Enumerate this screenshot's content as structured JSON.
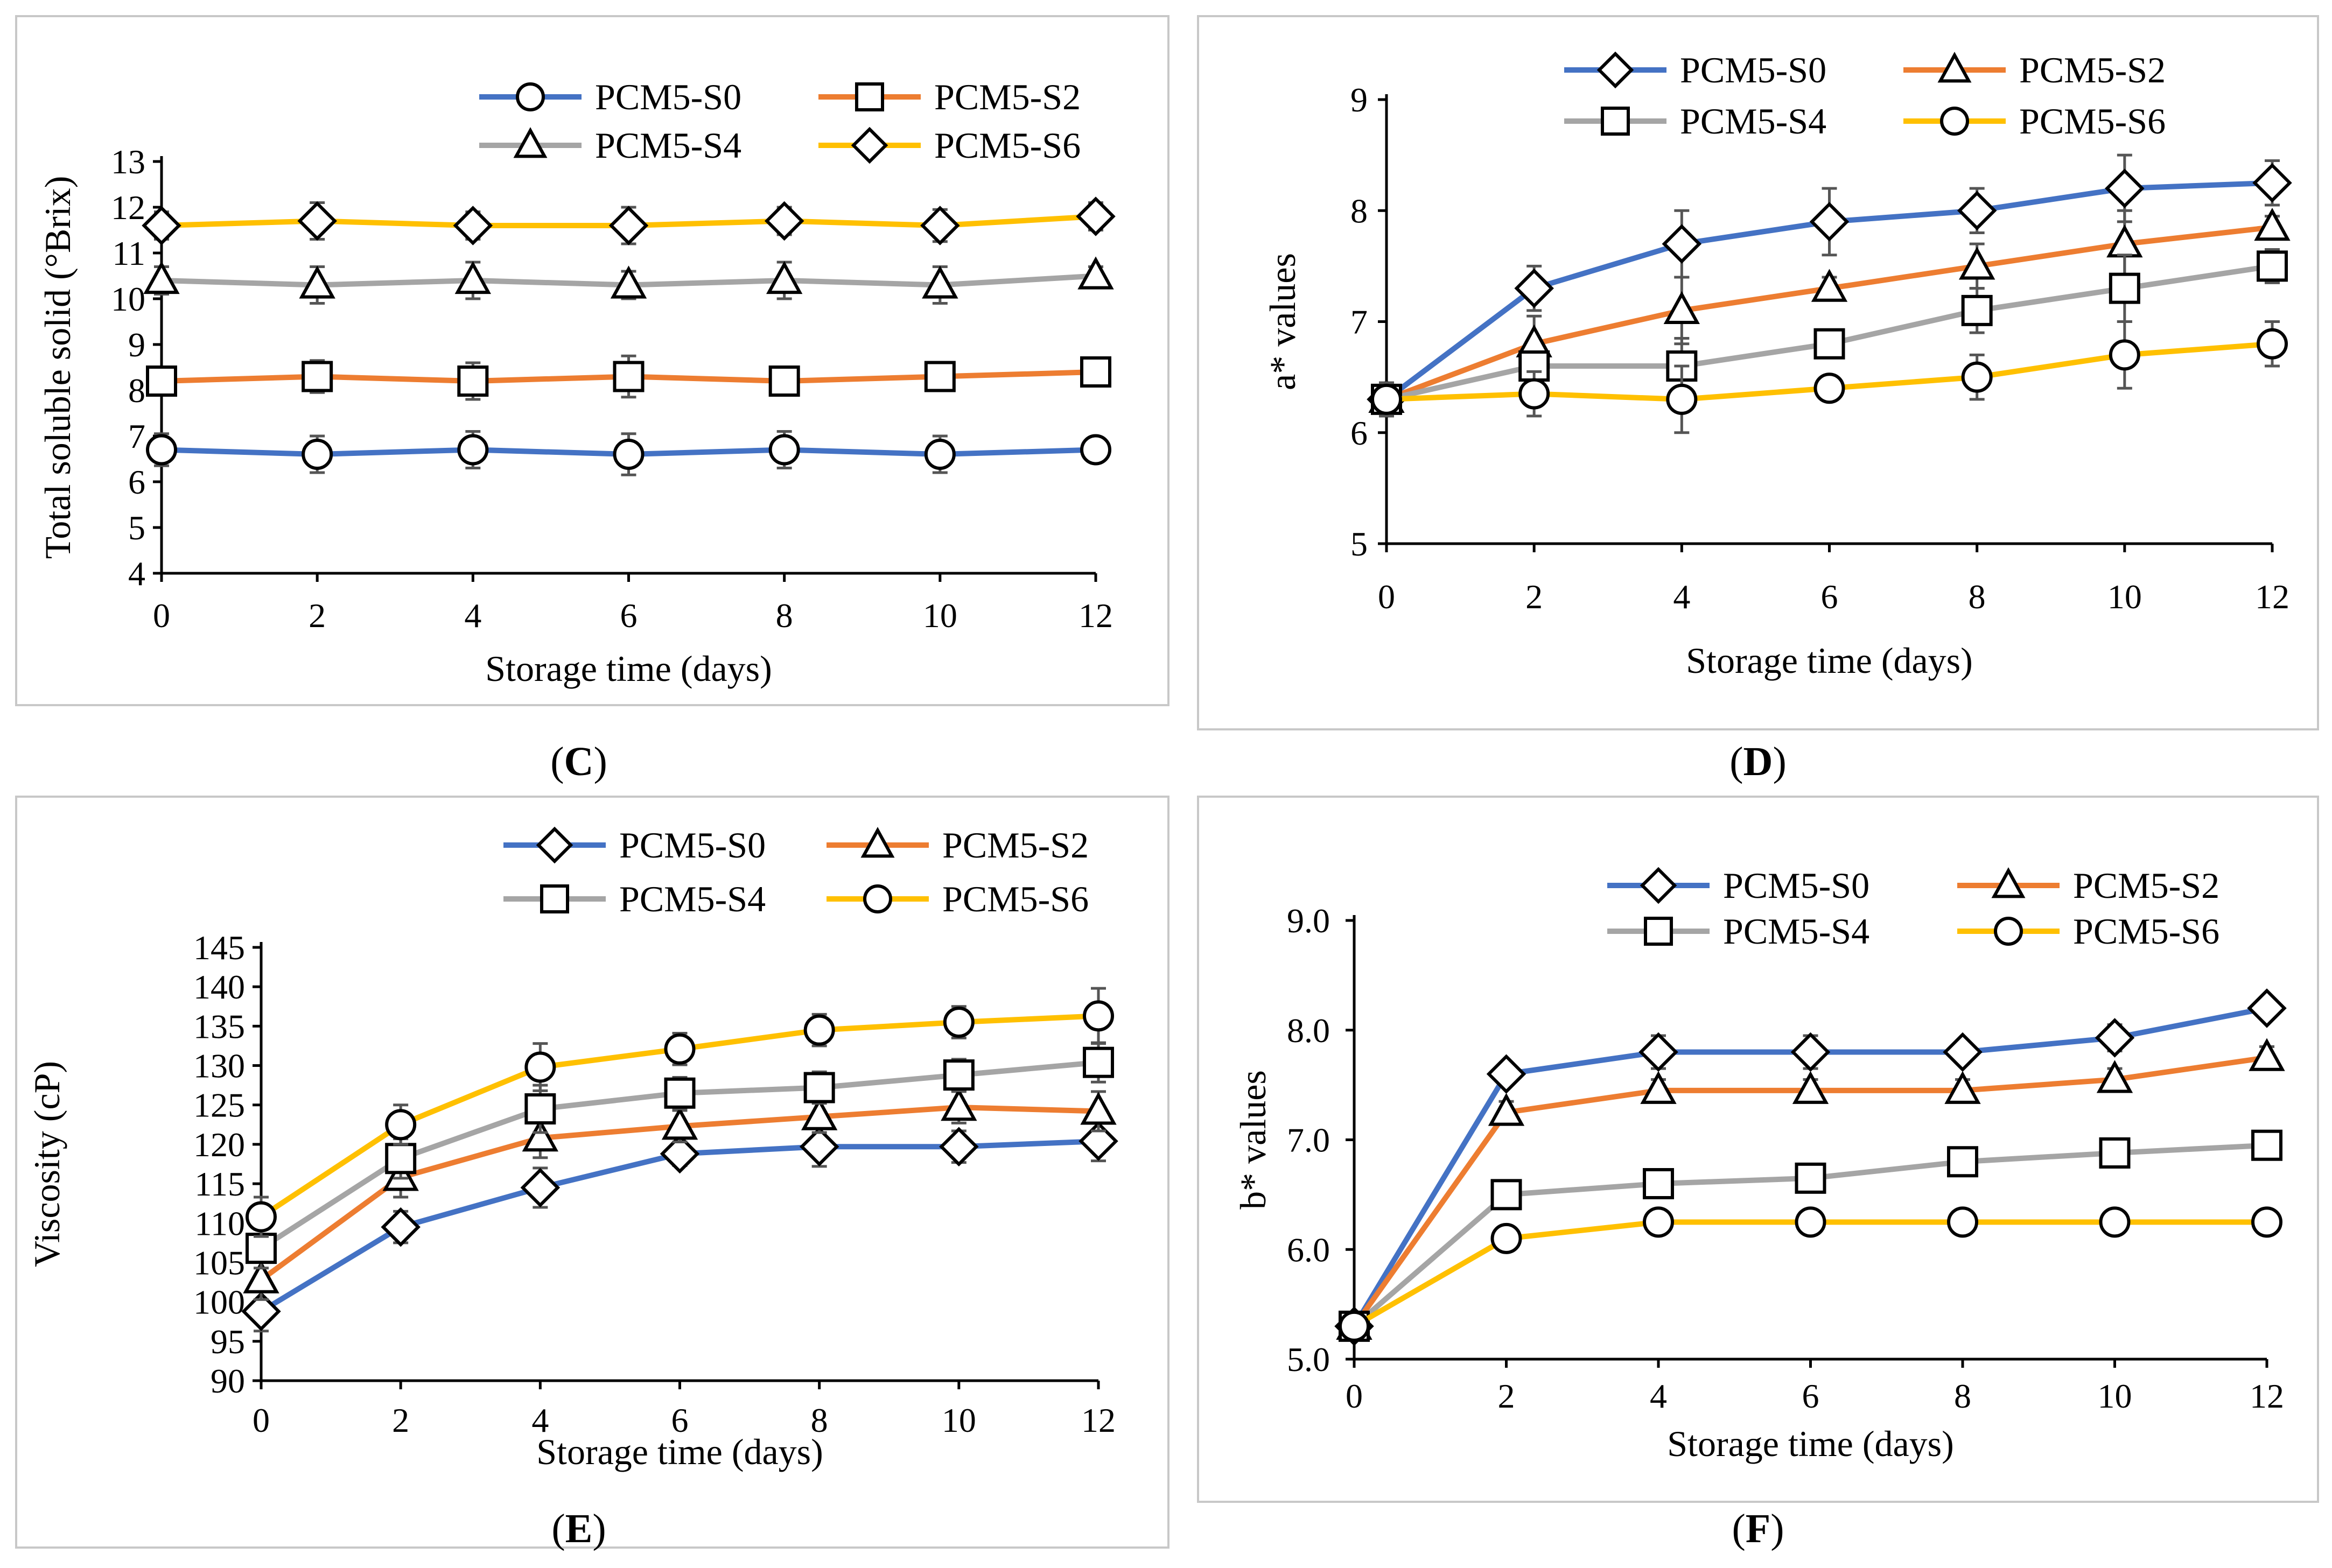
{
  "chart_data": [
    {
      "type": "line",
      "panel": "C",
      "caption": "C",
      "ylabel": "Total soluble solid (°Brix)",
      "xlabel": "Storage time (days)",
      "x": [
        0,
        2,
        4,
        6,
        8,
        10,
        12
      ],
      "ylim": [
        4,
        13
      ],
      "yticks": [
        "4",
        "5",
        "6",
        "7",
        "8",
        "9",
        "10",
        "11",
        "12",
        "13"
      ],
      "xticks": [
        "0",
        "2",
        "4",
        "6",
        "8",
        "10",
        "12"
      ],
      "series": [
        {
          "name": "PCM5-S0",
          "color": "#4472C4",
          "marker": "circle",
          "values": [
            6.7,
            6.6,
            6.7,
            6.6,
            6.7,
            6.6,
            6.7
          ],
          "err": [
            0.35,
            0.4,
            0.4,
            0.45,
            0.4,
            0.4,
            0.1
          ]
        },
        {
          "name": "PCM5-S2",
          "color": "#ED7D31",
          "marker": "square",
          "values": [
            8.2,
            8.3,
            8.2,
            8.3,
            8.2,
            8.3,
            8.4
          ],
          "err": [
            0.3,
            0.35,
            0.4,
            0.45,
            0.25,
            0.3,
            0.15
          ]
        },
        {
          "name": "PCM5-S4",
          "color": "#A5A5A5",
          "marker": "triangle",
          "values": [
            10.4,
            10.3,
            10.4,
            10.3,
            10.4,
            10.3,
            10.5
          ],
          "err": [
            0.3,
            0.4,
            0.4,
            0.3,
            0.4,
            0.4,
            0.2
          ]
        },
        {
          "name": "PCM5-S6",
          "color": "#FFC000",
          "marker": "diamond",
          "values": [
            11.6,
            11.7,
            11.6,
            11.6,
            11.7,
            11.6,
            11.8
          ],
          "err": [
            0.3,
            0.4,
            0.3,
            0.4,
            0.3,
            0.35,
            0.3
          ]
        }
      ]
    },
    {
      "type": "line",
      "panel": "D",
      "caption": "D",
      "ylabel": "a* values",
      "xlabel": "Storage time (days)",
      "x": [
        0,
        2,
        4,
        6,
        8,
        10,
        12
      ],
      "ylim": [
        5,
        9
      ],
      "yticks": [
        "5",
        "6",
        "7",
        "8",
        "9"
      ],
      "xticks": [
        "0",
        "2",
        "4",
        "6",
        "8",
        "10",
        "12"
      ],
      "series": [
        {
          "name": "PCM5-S0",
          "color": "#4472C4",
          "marker": "diamond",
          "values": [
            6.3,
            7.3,
            7.7,
            7.9,
            8.0,
            8.2,
            8.25
          ],
          "err": [
            0.15,
            0.2,
            0.3,
            0.3,
            0.2,
            0.3,
            0.2
          ]
        },
        {
          "name": "PCM5-S2",
          "color": "#ED7D31",
          "marker": "triangle",
          "values": [
            6.3,
            6.8,
            7.1,
            7.3,
            7.5,
            7.7,
            7.85
          ],
          "err": [
            0.15,
            0.25,
            0.3,
            0.1,
            0.2,
            0.3,
            0.1
          ]
        },
        {
          "name": "PCM5-S4",
          "color": "#A5A5A5",
          "marker": "square",
          "values": [
            6.3,
            6.6,
            6.6,
            6.8,
            7.1,
            7.3,
            7.5
          ],
          "err": [
            0.15,
            0.1,
            0.25,
            0.1,
            0.2,
            0.3,
            0.15
          ]
        },
        {
          "name": "PCM5-S6",
          "color": "#FFC000",
          "marker": "circle",
          "values": [
            6.3,
            6.35,
            6.3,
            6.4,
            6.5,
            6.7,
            6.8
          ],
          "err": [
            0.15,
            0.2,
            0.3,
            0.1,
            0.2,
            0.3,
            0.2
          ]
        }
      ]
    },
    {
      "type": "line",
      "panel": "E",
      "caption": "E",
      "ylabel": "Viscosity (cP)",
      "xlabel": "Storage time (days)",
      "x": [
        0,
        2,
        4,
        6,
        8,
        10,
        12
      ],
      "ylim": [
        90,
        145
      ],
      "yticks": [
        "90",
        "95",
        "100",
        "105",
        "110",
        "115",
        "120",
        "125",
        "130",
        "135",
        "140",
        "145"
      ],
      "xticks": [
        "0",
        "2",
        "4",
        "6",
        "8",
        "10",
        "12"
      ],
      "series": [
        {
          "name": "PCM5-S0",
          "color": "#4472C4",
          "marker": "diamond",
          "values": [
            98.8,
            109.5,
            114.5,
            118.8,
            119.7,
            119.7,
            120.4
          ],
          "err": [
            2.5,
            2.0,
            2.5,
            1.5,
            2.5,
            2.0,
            2.5
          ]
        },
        {
          "name": "PCM5-S2",
          "color": "#ED7D31",
          "marker": "triangle",
          "values": [
            102.8,
            115.8,
            120.8,
            122.3,
            123.5,
            124.7,
            124.2
          ],
          "err": [
            2.5,
            2.5,
            2.5,
            2.0,
            2.0,
            2.0,
            2.5
          ]
        },
        {
          "name": "PCM5-S4",
          "color": "#A5A5A5",
          "marker": "square",
          "values": [
            106.8,
            118.2,
            124.5,
            126.5,
            127.2,
            128.8,
            130.4
          ],
          "err": [
            2.5,
            2.5,
            3.0,
            2.0,
            2.0,
            2.0,
            2.5
          ]
        },
        {
          "name": "PCM5-S6",
          "color": "#FFC000",
          "marker": "circle",
          "values": [
            110.8,
            122.5,
            129.8,
            132.1,
            134.5,
            135.5,
            136.3
          ],
          "err": [
            2.5,
            2.5,
            3.0,
            2.0,
            2.0,
            2.0,
            3.5
          ]
        }
      ]
    },
    {
      "type": "line",
      "panel": "F",
      "caption": "F",
      "ylabel": "b* values",
      "xlabel": "Storage time (days)",
      "x": [
        0,
        2,
        4,
        6,
        8,
        10,
        12
      ],
      "ylim": [
        5.0,
        9.0
      ],
      "yticks": [
        "5.0",
        "6.0",
        "7.0",
        "8.0",
        "9.0"
      ],
      "xticks": [
        "0",
        "2",
        "4",
        "6",
        "8",
        "10",
        "12"
      ],
      "series": [
        {
          "name": "PCM5-S0",
          "color": "#4472C4",
          "marker": "diamond",
          "values": [
            5.3,
            7.6,
            7.8,
            7.8,
            7.8,
            7.93,
            8.2
          ],
          "err": [
            0.08,
            0.1,
            0.15,
            0.15,
            0.1,
            0.12,
            0.1
          ]
        },
        {
          "name": "PCM5-S2",
          "color": "#ED7D31",
          "marker": "triangle",
          "values": [
            5.3,
            7.25,
            7.45,
            7.45,
            7.45,
            7.55,
            7.75
          ],
          "err": [
            0.08,
            0.1,
            0.1,
            0.1,
            0.1,
            0.1,
            0.1
          ]
        },
        {
          "name": "PCM5-S4",
          "color": "#A5A5A5",
          "marker": "square",
          "values": [
            5.3,
            6.5,
            6.6,
            6.65,
            6.8,
            6.88,
            6.95
          ],
          "err": [
            0.08,
            0.1,
            0.1,
            0.1,
            0.1,
            0.1,
            0.1
          ]
        },
        {
          "name": "PCM5-S6",
          "color": "#FFC000",
          "marker": "circle",
          "values": [
            5.3,
            6.1,
            6.25,
            6.25,
            6.25,
            6.25,
            6.25
          ],
          "err": [
            0.08,
            0.1,
            0.1,
            0.1,
            0.08,
            0.08,
            0.08
          ]
        }
      ]
    }
  ]
}
